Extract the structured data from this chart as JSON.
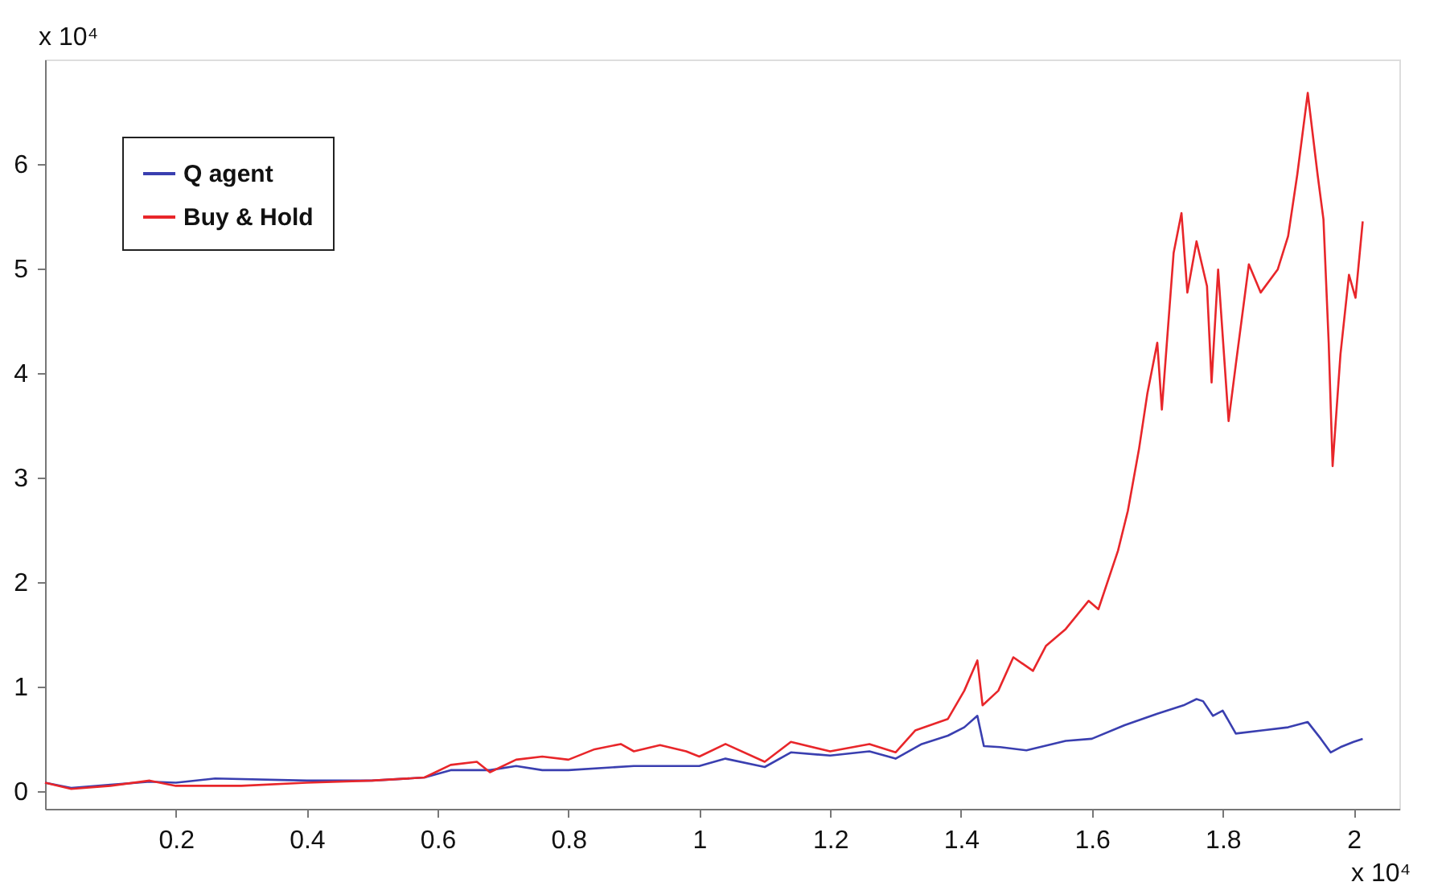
{
  "chart_data": {
    "type": "line",
    "xlim": [
      0,
      2.07
    ],
    "xticks": [
      0.2,
      0.4,
      0.6,
      0.8,
      1,
      1.2,
      1.4,
      1.6,
      1.8,
      2
    ],
    "ylim": [
      -0.17,
      7
    ],
    "yticks": [
      0,
      1,
      2,
      3,
      4,
      5,
      6
    ],
    "grid": false,
    "legend": "top left",
    "marker": "none",
    "line_style": "solid",
    "annotations": [
      "x 10⁴",
      "x 10⁴"
    ],
    "series": [
      {
        "name": "Q agent",
        "color": "#3a3fb0",
        "x": [
          0,
          0.04,
          0.1,
          0.16,
          0.2,
          0.26,
          0.4,
          0.5,
          0.58,
          0.62,
          0.68,
          0.72,
          0.76,
          0.8,
          0.9,
          1.0,
          1.04,
          1.1,
          1.14,
          1.2,
          1.26,
          1.3,
          1.34,
          1.38,
          1.405,
          1.425,
          1.435,
          1.46,
          1.5,
          1.56,
          1.6,
          1.65,
          1.7,
          1.74,
          1.76,
          1.77,
          1.785,
          1.8,
          1.82,
          1.86,
          1.9,
          1.93,
          1.95,
          1.965,
          1.98,
          2.0,
          2.014
        ],
        "values": [
          0.08,
          0.03,
          0.06,
          0.09,
          0.08,
          0.12,
          0.1,
          0.1,
          0.13,
          0.2,
          0.2,
          0.24,
          0.2,
          0.2,
          0.24,
          0.24,
          0.31,
          0.23,
          0.37,
          0.34,
          0.38,
          0.31,
          0.45,
          0.53,
          0.61,
          0.72,
          0.43,
          0.42,
          0.39,
          0.48,
          0.5,
          0.63,
          0.74,
          0.82,
          0.88,
          0.86,
          0.72,
          0.77,
          0.55,
          0.58,
          0.61,
          0.66,
          0.5,
          0.37,
          0.42,
          0.47,
          0.5
        ]
      },
      {
        "name": "Buy & Hold",
        "color": "#e8262a",
        "x": [
          0,
          0.04,
          0.1,
          0.16,
          0.2,
          0.3,
          0.4,
          0.5,
          0.58,
          0.62,
          0.66,
          0.68,
          0.72,
          0.76,
          0.8,
          0.84,
          0.88,
          0.9,
          0.94,
          0.98,
          1.0,
          1.04,
          1.1,
          1.14,
          1.2,
          1.26,
          1.3,
          1.33,
          1.38,
          1.405,
          1.425,
          1.433,
          1.457,
          1.48,
          1.51,
          1.53,
          1.56,
          1.595,
          1.61,
          1.64,
          1.655,
          1.672,
          1.685,
          1.7,
          1.707,
          1.725,
          1.737,
          1.746,
          1.76,
          1.776,
          1.783,
          1.793,
          1.809,
          1.82,
          1.84,
          1.858,
          1.884,
          1.9,
          1.914,
          1.93,
          1.945,
          1.954,
          1.962,
          1.968,
          1.98,
          1.993,
          2.003,
          2.014
        ],
        "values": [
          0.08,
          0.02,
          0.05,
          0.1,
          0.05,
          0.05,
          0.08,
          0.1,
          0.13,
          0.25,
          0.28,
          0.18,
          0.3,
          0.33,
          0.3,
          0.4,
          0.45,
          0.38,
          0.44,
          0.38,
          0.33,
          0.45,
          0.28,
          0.47,
          0.38,
          0.45,
          0.37,
          0.58,
          0.69,
          0.96,
          1.25,
          0.82,
          0.96,
          1.28,
          1.15,
          1.39,
          1.55,
          1.82,
          1.74,
          2.3,
          2.68,
          3.27,
          3.81,
          4.29,
          3.65,
          5.15,
          5.53,
          4.77,
          5.26,
          4.83,
          3.91,
          4.99,
          3.54,
          4.08,
          5.04,
          4.77,
          4.99,
          5.31,
          5.9,
          6.68,
          5.9,
          5.47,
          4.29,
          3.11,
          4.18,
          4.94,
          4.72,
          5.45
        ]
      }
    ]
  }
}
